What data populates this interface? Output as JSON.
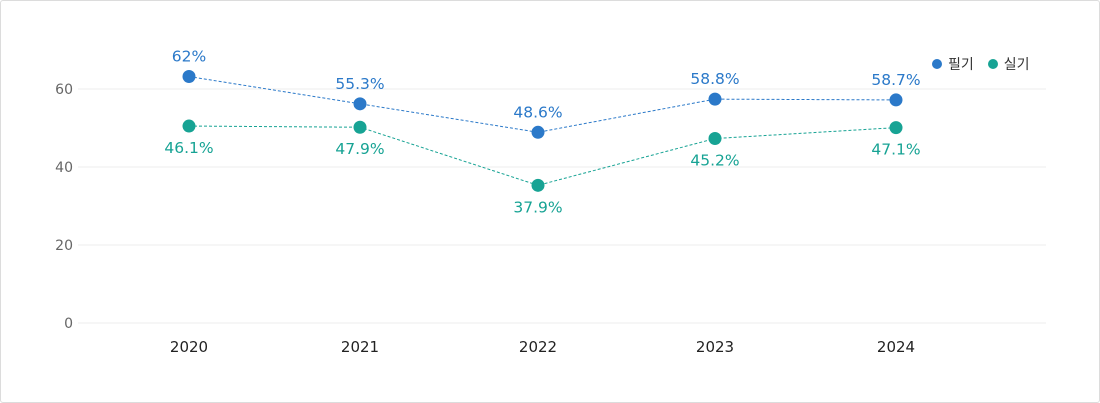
{
  "chart_data": {
    "type": "line",
    "categories": [
      "2020",
      "2021",
      "2022",
      "2023",
      "2024"
    ],
    "ylim": [
      0,
      70
    ],
    "yticks": [
      0,
      20,
      40,
      60
    ],
    "grid": true,
    "legend_position": "top-right",
    "series": [
      {
        "name": "필기",
        "color": "#2b79c9",
        "values": [
          62,
          55.3,
          48.6,
          58.8,
          58.7
        ],
        "labels": [
          "62%",
          "55.3%",
          "48.6%",
          "58.8%",
          "58.7%"
        ],
        "plot_values": [
          63.2,
          56.2,
          48.9,
          57.4,
          57.2
        ]
      },
      {
        "name": "실기",
        "color": "#17a394",
        "values": [
          46.1,
          47.9,
          37.9,
          45.2,
          47.1
        ],
        "labels": [
          "46.1%",
          "47.9%",
          "37.9%",
          "45.2%",
          "47.1%"
        ],
        "plot_values": [
          50.5,
          50.2,
          35.3,
          47.3,
          50.1
        ]
      }
    ]
  }
}
